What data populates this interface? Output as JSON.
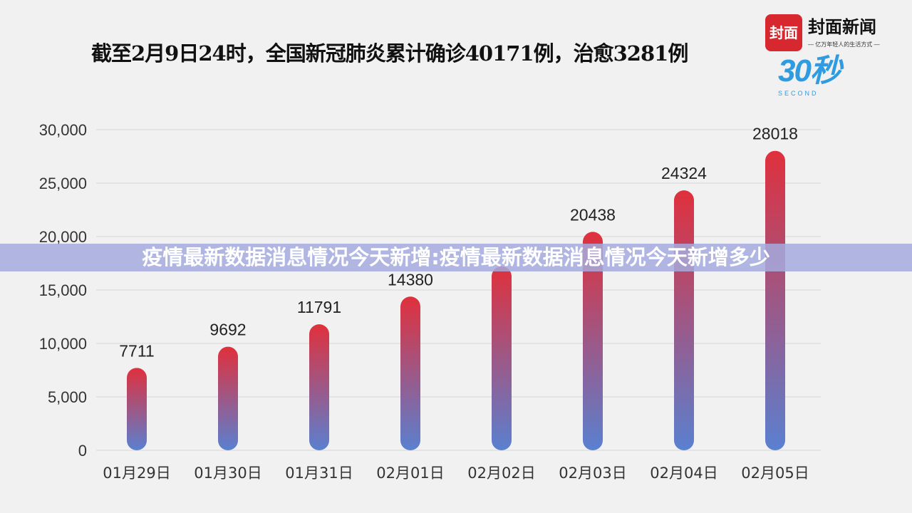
{
  "chart_data": {
    "type": "bar",
    "title": "截至2月9日24时，全国新冠肺炎累计确诊40171例，治愈3281例",
    "categories": [
      "01月29日",
      "01月30日",
      "01月31日",
      "02月01日",
      "02月02日",
      "02月03日",
      "02月04日",
      "02月05日"
    ],
    "values": [
      7711,
      9692,
      11791,
      14380,
      17205,
      20438,
      24324,
      28018
    ],
    "data_labels": [
      "7711",
      "9692",
      "11791",
      "14380",
      "",
      "20438",
      "24324",
      "28018"
    ],
    "yticks": [
      "0",
      "5,000",
      "10,000",
      "15,000",
      "20,000",
      "25,000",
      "30,000"
    ],
    "ylim": [
      0,
      30000
    ],
    "grid": true,
    "colors": {
      "top": "#e0303c",
      "bottom": "#5a80d0"
    }
  },
  "logo": {
    "mark": "封面",
    "name": "封面新闻",
    "slogan": "— 亿万年轻人的生活方式 —",
    "badge": "30秒",
    "badge_sub": "SECOND"
  },
  "banner": "疫情最新数据消息情况今天新增:疫情最新数据消息情况今天新增多少"
}
